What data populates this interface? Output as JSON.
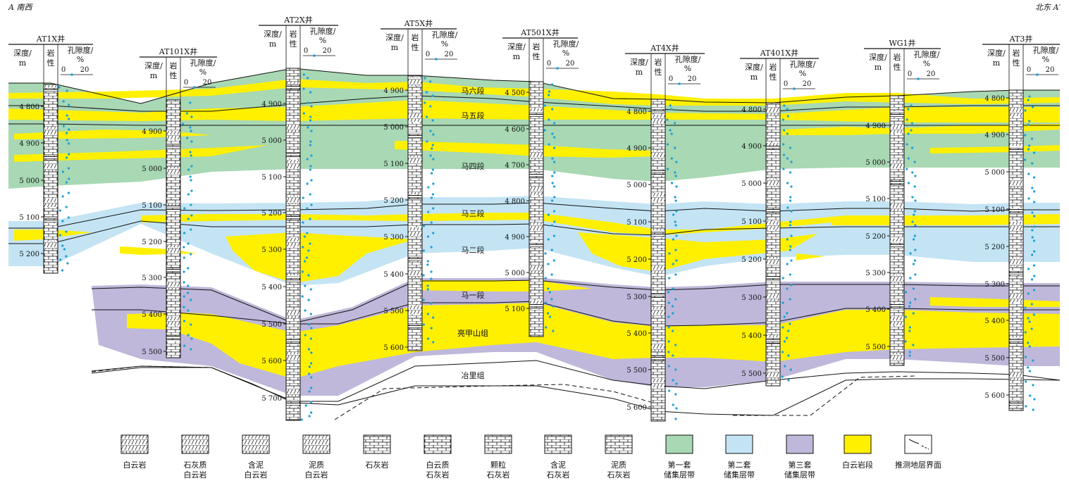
{
  "corner_left": "A 南西",
  "corner_right": "北东 A′",
  "column_headers": {
    "depth": "深度/",
    "depth_unit": "m",
    "lith1": "岩",
    "lith2": "性",
    "poro1": "孔隙度/",
    "poro2": "%",
    "poro_min": "0",
    "poro_max": "20"
  },
  "wells": [
    {
      "name": "AT1X井",
      "ticks": [
        "4 800",
        "4 900",
        "5 000",
        "5 100",
        "5 200"
      ]
    },
    {
      "name": "AT101X井",
      "ticks": [
        "4 900",
        "5 000",
        "5 100",
        "5 200",
        "5 300",
        "5 400",
        "5 500"
      ]
    },
    {
      "name": "AT2X井",
      "ticks": [
        "4 900",
        "5 000",
        "5 100",
        "5 200",
        "5 300",
        "5 400",
        "5 500",
        "5 600",
        "5 700"
      ]
    },
    {
      "name": "AT5X井",
      "ticks": [
        "4 900",
        "5 000",
        "5 100",
        "5 200",
        "5 300",
        "5 400",
        "5 500",
        "5 600"
      ]
    },
    {
      "name": "AT501X井",
      "ticks": [
        "4 500",
        "4 600",
        "4 700",
        "4 800",
        "4 900",
        "5 000",
        "5 100"
      ]
    },
    {
      "name": "AT4X井",
      "ticks": [
        "4 800",
        "4 900",
        "5 000",
        "5 100",
        "5 200",
        "5 300",
        "5 400",
        "5 500",
        "5 600"
      ]
    },
    {
      "name": "AT401X井",
      "ticks": [
        "4 800",
        "4 900",
        "5 000",
        "5 100",
        "5 200",
        "5 300",
        "5 400",
        "5 500"
      ]
    },
    {
      "name": "WG1井",
      "ticks": [
        "4 900",
        "5 000",
        "5 100",
        "5 200",
        "5 300",
        "5 400",
        "5 500"
      ]
    },
    {
      "name": "AT3井",
      "ticks": [
        "4 800",
        "4 900",
        "5 000",
        "5 100",
        "5 200",
        "5 300",
        "5 400",
        "5 500",
        "5 600"
      ]
    }
  ],
  "strata_labels": [
    "马六段",
    "马五段",
    "马四段",
    "马三段",
    "马二段",
    "马一段",
    "亮甲山组",
    "冶里组"
  ],
  "legend": [
    {
      "l1": "白云岩",
      "l2": ""
    },
    {
      "l1": "石灰质",
      "l2": "白云岩"
    },
    {
      "l1": "含泥",
      "l2": "白云岩"
    },
    {
      "l1": "泥质",
      "l2": "白云岩"
    },
    {
      "l1": "石灰岩",
      "l2": ""
    },
    {
      "l1": "白云质",
      "l2": "石灰岩"
    },
    {
      "l1": "颗粒",
      "l2": "石灰岩"
    },
    {
      "l1": "含泥",
      "l2": "石灰岩"
    },
    {
      "l1": "泥质",
      "l2": "石灰岩"
    },
    {
      "l1": "第一套",
      "l2": "储集层带"
    },
    {
      "l1": "第二套",
      "l2": "储集层带"
    },
    {
      "l1": "第三套",
      "l2": "储集层带"
    },
    {
      "l1": "白云岩段",
      "l2": ""
    },
    {
      "l1": "推测地层界面",
      "l2": ""
    }
  ],
  "colors": {
    "reservoir1": "#a8d8b4",
    "reservoir2": "#c4e4f4",
    "reservoir3": "#bfb8da",
    "dolomite_band": "#fff000",
    "porosity_dot": "#1aa0d8"
  }
}
